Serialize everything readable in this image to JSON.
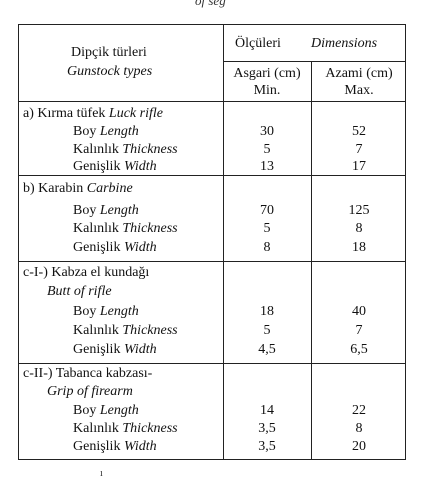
{
  "top_fragment": "of seg",
  "bottom_fragment": "ı",
  "header": {
    "type_tr": "Dipçik türleri",
    "type_en": "Gunstock types",
    "dims_tr": "Ölçüleri",
    "dims_en": "Dimensions",
    "min_tr": "Asgari (cm)",
    "min_en": "Min.",
    "max_tr": "Azami (cm)",
    "max_en": "Max."
  },
  "sections": [
    {
      "title_tr": "a) Kırma tüfek",
      "title_en": "Luck rifle",
      "rows": [
        {
          "tr": "Boy",
          "en": "Length",
          "min": "30",
          "max": "52"
        },
        {
          "tr": "Kalınlık",
          "en": "Thickness",
          "min": "5",
          "max": "7"
        },
        {
          "tr": "Genişlik",
          "en": "Width",
          "min": "13",
          "max": "17"
        }
      ]
    },
    {
      "title_tr": "b) Karabin",
      "title_en": "Carbine",
      "rows": [
        {
          "tr": "Boy",
          "en": "Length",
          "min": "70",
          "max": "125"
        },
        {
          "tr": "Kalınlık",
          "en": "Thickness",
          "min": "5",
          "max": "8"
        },
        {
          "tr": "Genişlik",
          "en": "Width",
          "min": "8",
          "max": "18"
        }
      ]
    },
    {
      "title_tr": "c-I-) Kabza el kundağı",
      "title_en": "Butt of rifle",
      "rows": [
        {
          "tr": "Boy",
          "en": "Length",
          "min": "18",
          "max": "40"
        },
        {
          "tr": "Kalınlık",
          "en": "Thickness",
          "min": "5",
          "max": "7"
        },
        {
          "tr": "Genişlik",
          "en": "Width",
          "min": "4,5",
          "max": "6,5"
        }
      ]
    },
    {
      "title_tr": "c-II-) Tabanca kabzası-",
      "title_en": "Grip of firearm",
      "rows": [
        {
          "tr": "Boy",
          "en": "Length",
          "min": "14",
          "max": "22"
        },
        {
          "tr": "Kalınlık",
          "en": "Thickness",
          "min": "3,5",
          "max": "8"
        },
        {
          "tr": "Genişlik",
          "en": "Width",
          "min": "3,5",
          "max": "20"
        }
      ]
    }
  ]
}
